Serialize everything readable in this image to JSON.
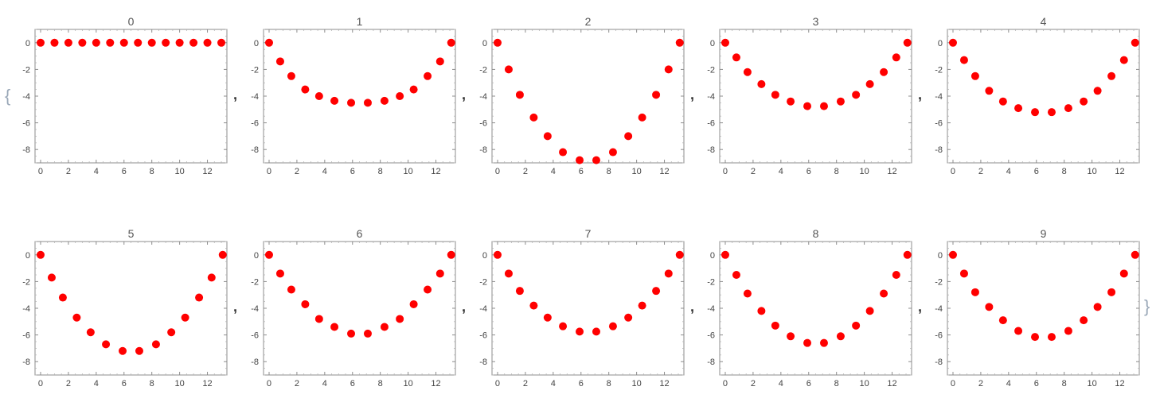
{
  "colors": {
    "points": "#ff0000",
    "frame": "#8c8c8c",
    "text": "#444444",
    "brace": "#9aa8b8"
  },
  "list_delimiters": {
    "open": "{",
    "close": "}",
    "separator": ","
  },
  "chart_data": [
    {
      "type": "scatter",
      "title": "0",
      "xlim": [
        -0.4,
        13.4
      ],
      "ylim": [
        -9,
        1
      ],
      "xticks": [
        0,
        2,
        4,
        6,
        8,
        10,
        12
      ],
      "xtick_labels": [
        "0",
        "2",
        "4",
        "6",
        "8",
        "10",
        "12"
      ],
      "yticks": [
        0,
        -2,
        -4,
        -6,
        -8
      ],
      "ytick_labels": [
        "0",
        "-2",
        "-4",
        "-6",
        "-8"
      ],
      "x": [
        0,
        1,
        2,
        3,
        4,
        5,
        6,
        7,
        8,
        9,
        10,
        11,
        12,
        13
      ],
      "y": [
        0,
        0,
        0,
        0,
        0,
        0,
        0,
        0,
        0,
        0,
        0,
        0,
        0,
        0
      ]
    },
    {
      "type": "scatter",
      "title": "1",
      "xlim": [
        -0.4,
        13.4
      ],
      "ylim": [
        -9,
        1
      ],
      "xticks": [
        0,
        2,
        4,
        6,
        8,
        10,
        12
      ],
      "xtick_labels": [
        "0",
        "2",
        "4",
        "6",
        "8",
        "10",
        "12"
      ],
      "yticks": [
        0,
        -2,
        -4,
        -6,
        -8
      ],
      "ytick_labels": [
        "0",
        "-2",
        "-4",
        "-6",
        "-8"
      ],
      "x": [
        0,
        0.8,
        1.6,
        2.6,
        3.6,
        4.7,
        5.9,
        7.1,
        8.3,
        9.4,
        10.4,
        11.4,
        12.3,
        13.1
      ],
      "y": [
        0,
        -1.4,
        -2.5,
        -3.5,
        -4.0,
        -4.35,
        -4.5,
        -4.5,
        -4.35,
        -4.0,
        -3.5,
        -2.5,
        -1.4,
        0
      ]
    },
    {
      "type": "scatter",
      "title": "2",
      "xlim": [
        -0.4,
        13.4
      ],
      "ylim": [
        -9,
        1
      ],
      "xticks": [
        0,
        2,
        4,
        6,
        8,
        10,
        12
      ],
      "xtick_labels": [
        "0",
        "2",
        "4",
        "6",
        "8",
        "10",
        "12"
      ],
      "yticks": [
        0,
        -2,
        -4,
        -6,
        -8
      ],
      "ytick_labels": [
        "0",
        "-2",
        "-4",
        "-6",
        "-8"
      ],
      "x": [
        0,
        0.8,
        1.6,
        2.6,
        3.6,
        4.7,
        5.9,
        7.1,
        8.3,
        9.4,
        10.4,
        11.4,
        12.3,
        13.1
      ],
      "y": [
        0,
        -2.0,
        -3.9,
        -5.6,
        -7.0,
        -8.2,
        -8.8,
        -8.8,
        -8.2,
        -7.0,
        -5.6,
        -3.9,
        -2.0,
        0
      ]
    },
    {
      "type": "scatter",
      "title": "3",
      "xlim": [
        -0.4,
        13.4
      ],
      "ylim": [
        -9,
        1
      ],
      "xticks": [
        0,
        2,
        4,
        6,
        8,
        10,
        12
      ],
      "xtick_labels": [
        "0",
        "2",
        "4",
        "6",
        "8",
        "10",
        "12"
      ],
      "yticks": [
        0,
        -2,
        -4,
        -6,
        -8
      ],
      "ytick_labels": [
        "0",
        "-2",
        "-4",
        "-6",
        "-8"
      ],
      "x": [
        0,
        0.8,
        1.6,
        2.6,
        3.6,
        4.7,
        5.9,
        7.1,
        8.3,
        9.4,
        10.4,
        11.4,
        12.3,
        13.1
      ],
      "y": [
        0,
        -1.1,
        -2.2,
        -3.1,
        -3.9,
        -4.4,
        -4.75,
        -4.75,
        -4.4,
        -3.9,
        -3.1,
        -2.2,
        -1.1,
        0
      ]
    },
    {
      "type": "scatter",
      "title": "4",
      "xlim": [
        -0.4,
        13.4
      ],
      "ylim": [
        -9,
        1
      ],
      "xticks": [
        0,
        2,
        4,
        6,
        8,
        10,
        12
      ],
      "xtick_labels": [
        "0",
        "2",
        "4",
        "6",
        "8",
        "10",
        "12"
      ],
      "yticks": [
        0,
        -2,
        -4,
        -6,
        -8
      ],
      "ytick_labels": [
        "0",
        "-2",
        "-4",
        "-6",
        "-8"
      ],
      "x": [
        0,
        0.8,
        1.6,
        2.6,
        3.6,
        4.7,
        5.9,
        7.1,
        8.3,
        9.4,
        10.4,
        11.4,
        12.3,
        13.1
      ],
      "y": [
        0,
        -1.3,
        -2.5,
        -3.6,
        -4.4,
        -4.9,
        -5.2,
        -5.2,
        -4.9,
        -4.4,
        -3.6,
        -2.5,
        -1.3,
        0
      ]
    },
    {
      "type": "scatter",
      "title": "5",
      "xlim": [
        -0.4,
        13.4
      ],
      "ylim": [
        -9,
        1
      ],
      "xticks": [
        0,
        2,
        4,
        6,
        8,
        10,
        12
      ],
      "xtick_labels": [
        "0",
        "2",
        "4",
        "6",
        "8",
        "10",
        "12"
      ],
      "yticks": [
        0,
        -2,
        -4,
        -6,
        -8
      ],
      "ytick_labels": [
        "0",
        "-2",
        "-4",
        "-6",
        "-8"
      ],
      "x": [
        0,
        0.8,
        1.6,
        2.6,
        3.6,
        4.7,
        5.9,
        7.1,
        8.3,
        9.4,
        10.4,
        11.4,
        12.3,
        13.1
      ],
      "y": [
        0,
        -1.7,
        -3.2,
        -4.7,
        -5.8,
        -6.7,
        -7.2,
        -7.2,
        -6.7,
        -5.8,
        -4.7,
        -3.2,
        -1.7,
        0
      ]
    },
    {
      "type": "scatter",
      "title": "6",
      "xlim": [
        -0.4,
        13.4
      ],
      "ylim": [
        -9,
        1
      ],
      "xticks": [
        0,
        2,
        4,
        6,
        8,
        10,
        12
      ],
      "xtick_labels": [
        "0",
        "2",
        "4",
        "6",
        "8",
        "10",
        "12"
      ],
      "yticks": [
        0,
        -2,
        -4,
        -6,
        -8
      ],
      "ytick_labels": [
        "0",
        "-2",
        "-4",
        "-6",
        "-8"
      ],
      "x": [
        0,
        0.8,
        1.6,
        2.6,
        3.6,
        4.7,
        5.9,
        7.1,
        8.3,
        9.4,
        10.4,
        11.4,
        12.3,
        13.1
      ],
      "y": [
        0,
        -1.4,
        -2.6,
        -3.7,
        -4.8,
        -5.4,
        -5.9,
        -5.9,
        -5.4,
        -4.8,
        -3.7,
        -2.6,
        -1.4,
        0
      ]
    },
    {
      "type": "scatter",
      "title": "7",
      "xlim": [
        -0.4,
        13.4
      ],
      "ylim": [
        -9,
        1
      ],
      "xticks": [
        0,
        2,
        4,
        6,
        8,
        10,
        12
      ],
      "xtick_labels": [
        "0",
        "2",
        "4",
        "6",
        "8",
        "10",
        "12"
      ],
      "yticks": [
        0,
        -2,
        -4,
        -6,
        -8
      ],
      "ytick_labels": [
        "0",
        "-2",
        "-4",
        "-6",
        "-8"
      ],
      "x": [
        0,
        0.8,
        1.6,
        2.6,
        3.6,
        4.7,
        5.9,
        7.1,
        8.3,
        9.4,
        10.4,
        11.4,
        12.3,
        13.1
      ],
      "y": [
        0,
        -1.4,
        -2.7,
        -3.8,
        -4.7,
        -5.35,
        -5.75,
        -5.75,
        -5.35,
        -4.7,
        -3.8,
        -2.7,
        -1.4,
        0
      ]
    },
    {
      "type": "scatter",
      "title": "8",
      "xlim": [
        -0.4,
        13.4
      ],
      "ylim": [
        -9,
        1
      ],
      "xticks": [
        0,
        2,
        4,
        6,
        8,
        10,
        12
      ],
      "xtick_labels": [
        "0",
        "2",
        "4",
        "6",
        "8",
        "10",
        "12"
      ],
      "yticks": [
        0,
        -2,
        -4,
        -6,
        -8
      ],
      "ytick_labels": [
        "0",
        "-2",
        "-4",
        "-6",
        "-8"
      ],
      "x": [
        0,
        0.8,
        1.6,
        2.6,
        3.6,
        4.7,
        5.9,
        7.1,
        8.3,
        9.4,
        10.4,
        11.4,
        12.3,
        13.1
      ],
      "y": [
        0,
        -1.5,
        -2.9,
        -4.2,
        -5.3,
        -6.1,
        -6.6,
        -6.6,
        -6.1,
        -5.3,
        -4.2,
        -2.9,
        -1.5,
        0
      ]
    },
    {
      "type": "scatter",
      "title": "9",
      "xlim": [
        -0.4,
        13.4
      ],
      "ylim": [
        -9,
        1
      ],
      "xticks": [
        0,
        2,
        4,
        6,
        8,
        10,
        12
      ],
      "xtick_labels": [
        "0",
        "2",
        "4",
        "6",
        "8",
        "10",
        "12"
      ],
      "yticks": [
        0,
        -2,
        -4,
        -6,
        -8
      ],
      "ytick_labels": [
        "0",
        "-2",
        "-4",
        "-6",
        "-8"
      ],
      "x": [
        0,
        0.8,
        1.6,
        2.6,
        3.6,
        4.7,
        5.9,
        7.1,
        8.3,
        9.4,
        10.4,
        11.4,
        12.3,
        13.1
      ],
      "y": [
        0,
        -1.4,
        -2.8,
        -3.9,
        -4.9,
        -5.7,
        -6.15,
        -6.15,
        -5.7,
        -4.9,
        -3.9,
        -2.8,
        -1.4,
        0
      ]
    }
  ]
}
